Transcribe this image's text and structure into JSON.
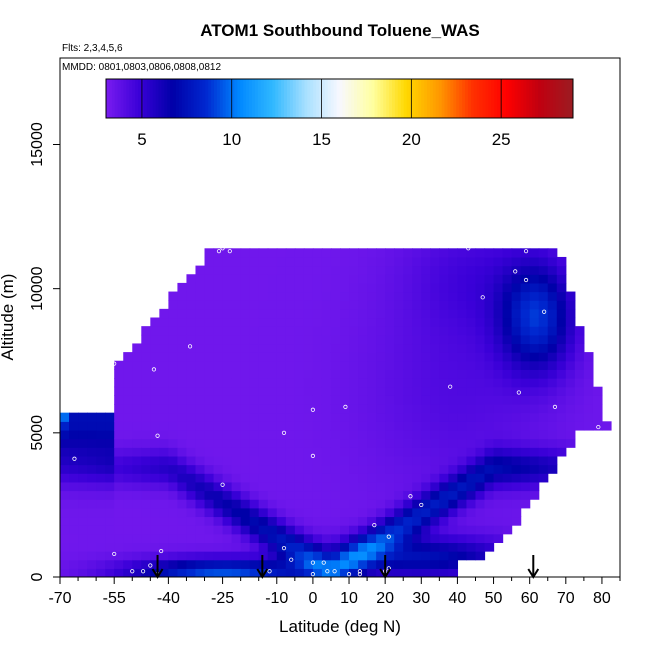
{
  "chart_data": {
    "type": "heatmap",
    "title": "ATOM1 Southbound Toluene_WAS",
    "annotations": [
      "Flts: 2,3,4,5,6",
      "MMDD: 0801,0803,0806,0808,0812"
    ],
    "xlabel": "Latitude (deg N)",
    "ylabel": "Altitude (m)",
    "xlim": [
      -70,
      85
    ],
    "ylim": [
      0,
      18000
    ],
    "x_ticks": [
      -70,
      -55,
      -40,
      -25,
      -10,
      0,
      10,
      20,
      30,
      40,
      50,
      60,
      70,
      80
    ],
    "x_tick_labels": [
      "-70",
      "-55",
      "-40",
      "-25",
      "-10",
      "0",
      "10",
      "20",
      "30",
      "40",
      "50",
      "60",
      "70",
      "80"
    ],
    "x_minor_ticks": [
      -65,
      -60,
      -50,
      -45,
      -35,
      -30,
      -20,
      -15,
      -5,
      5,
      15,
      25,
      35,
      45,
      55,
      65,
      75,
      85
    ],
    "y_ticks": [
      0,
      5000,
      10000,
      15000
    ],
    "y_tick_labels": [
      "0",
      "5000",
      "10000",
      "15000"
    ],
    "colorbar": {
      "min": 3,
      "max": 29,
      "ticks": [
        5,
        10,
        15,
        20,
        25
      ],
      "tick_labels": [
        "5",
        "10",
        "15",
        "20",
        "25"
      ],
      "colors": [
        "#7a1cf0",
        "#3a00d8",
        "#0000a8",
        "#0028d0",
        "#0088ff",
        "#30b8ff",
        "#a8e0ff",
        "#f8f8ff",
        "#ffffa0",
        "#ffd800",
        "#ff9800",
        "#ff3000",
        "#ff0000",
        "#c00010",
        "#9b1c22"
      ]
    },
    "flight_markers": [
      -43,
      -14,
      20,
      61
    ],
    "sample_points": [
      [
        -67,
        6300
      ],
      [
        -66,
        4100
      ],
      [
        -55,
        7400
      ],
      [
        -50,
        200
      ],
      [
        -55,
        800
      ],
      [
        -47,
        200
      ],
      [
        -45,
        400
      ],
      [
        -43,
        100
      ],
      [
        -42,
        900
      ],
      [
        -43,
        4900
      ],
      [
        -44,
        7200
      ],
      [
        -34,
        8000
      ],
      [
        -25,
        11400
      ],
      [
        -26,
        11300
      ],
      [
        -25,
        3200
      ],
      [
        -23,
        11300
      ],
      [
        -12,
        200
      ],
      [
        -8,
        1000
      ],
      [
        -6,
        600
      ],
      [
        -8,
        5000
      ],
      [
        0,
        5800
      ],
      [
        0,
        4200
      ],
      [
        0,
        500
      ],
      [
        0,
        100
      ],
      [
        3,
        500
      ],
      [
        4,
        200
      ],
      [
        9,
        5900
      ],
      [
        10,
        100
      ],
      [
        13,
        100
      ],
      [
        13,
        200
      ],
      [
        17,
        1800
      ],
      [
        21,
        1400
      ],
      [
        21,
        300
      ],
      [
        27,
        2800
      ],
      [
        38,
        6600
      ],
      [
        43,
        11400
      ],
      [
        49,
        500
      ],
      [
        56,
        10600
      ],
      [
        59,
        11300
      ],
      [
        59,
        10300
      ],
      [
        64,
        9200
      ],
      [
        67,
        5900
      ],
      [
        78,
        5000
      ],
      [
        79,
        5200
      ],
      [
        57,
        6400
      ],
      [
        6,
        200
      ],
      [
        20,
        200
      ],
      [
        30,
        2500
      ],
      [
        47,
        9700
      ]
    ]
  }
}
